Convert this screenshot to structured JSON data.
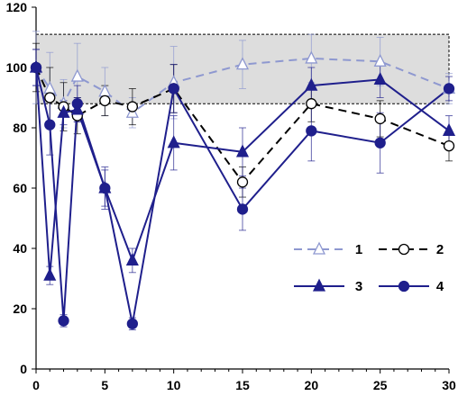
{
  "chart_data": {
    "type": "line",
    "x_ticks": [
      0,
      5,
      10,
      15,
      20,
      25,
      30
    ],
    "y_ticks": [
      0,
      20,
      40,
      60,
      80,
      100,
      120
    ],
    "xlim": [
      0,
      30
    ],
    "ylim": [
      0,
      120
    ],
    "grid": false,
    "legend_position": "lower-right",
    "shaded_band": {
      "y_low": 88,
      "y_high": 111,
      "color": "#d4d4d4"
    },
    "series": [
      {
        "name": "1",
        "marker": "triangle-open",
        "line": "dashed",
        "color": "#8e98d0",
        "x": [
          0,
          1,
          2,
          3,
          5,
          7,
          10,
          15,
          20,
          25,
          30
        ],
        "y": [
          100,
          93,
          88,
          97,
          92,
          85,
          95,
          101,
          103,
          102,
          93
        ],
        "err": [
          12,
          12,
          8,
          11,
          8,
          5,
          12,
          8,
          8,
          8,
          5
        ]
      },
      {
        "name": "2",
        "marker": "circle-open",
        "line": "dashed",
        "color": "#000000",
        "x": [
          0,
          1,
          2,
          3,
          5,
          7,
          10,
          15,
          20,
          25,
          30
        ],
        "y": [
          100,
          90,
          87,
          84,
          89,
          87,
          93,
          62,
          88,
          83,
          74
        ],
        "err": [
          8,
          10,
          8,
          6,
          5,
          6,
          8,
          5,
          6,
          6,
          5
        ]
      },
      {
        "name": "3",
        "marker": "triangle-filled",
        "line": "solid",
        "color": "#1f1f8c",
        "x": [
          0,
          1,
          2,
          3,
          5,
          7,
          10,
          15,
          20,
          25,
          30
        ],
        "y": [
          100,
          31,
          85,
          86,
          60,
          36,
          75,
          72,
          94,
          96,
          79
        ],
        "err": [
          6,
          3,
          4,
          4,
          6,
          4,
          9,
          8,
          6,
          6,
          5
        ]
      },
      {
        "name": "4",
        "marker": "circle-filled",
        "line": "solid",
        "color": "#1f1f8c",
        "x": [
          0,
          1,
          2,
          3,
          5,
          7,
          10,
          15,
          20,
          25,
          30
        ],
        "y": [
          100,
          81,
          16,
          88,
          60,
          15,
          93,
          53,
          79,
          75,
          93
        ],
        "err": [
          6,
          10,
          2,
          6,
          7,
          2,
          8,
          7,
          10,
          10,
          4
        ]
      }
    ]
  }
}
